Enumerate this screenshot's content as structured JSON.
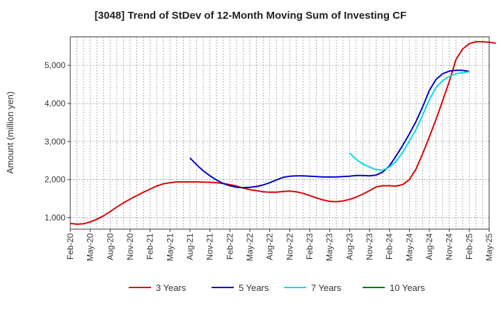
{
  "chart_data": {
    "type": "line",
    "title": "[3048]  Trend of StDev of 12-Month Moving Sum of Investing CF",
    "ylabel": "Amount (million yen)",
    "xlabel": "",
    "x_ticks": [
      "Feb-20",
      "May-20",
      "Aug-20",
      "Nov-20",
      "Feb-21",
      "May-21",
      "Aug-21",
      "Nov-21",
      "Feb-22",
      "May-22",
      "Aug-22",
      "Nov-22",
      "Feb-23",
      "May-23",
      "Aug-23",
      "Nov-23",
      "Feb-24",
      "May-24",
      "Aug-24",
      "Nov-24",
      "Feb-25",
      "May-25"
    ],
    "y_ticks": [
      1000,
      2000,
      3000,
      4000,
      5000
    ],
    "y_tick_labels": [
      "1,000",
      "2,000",
      "3,000",
      "4,000",
      "5,000"
    ],
    "ylim": [
      700,
      5750
    ],
    "xlim": [
      0,
      63
    ],
    "grid": true,
    "legend_position": "bottom",
    "series": [
      {
        "name": "3 Years",
        "color": "#dd0000",
        "x_start": 0,
        "values": [
          850,
          830,
          840,
          890,
          960,
          1050,
          1160,
          1280,
          1390,
          1490,
          1580,
          1670,
          1750,
          1830,
          1890,
          1920,
          1940,
          1940,
          1940,
          1940,
          1935,
          1930,
          1920,
          1900,
          1870,
          1830,
          1780,
          1740,
          1710,
          1680,
          1670,
          1670,
          1690,
          1700,
          1680,
          1640,
          1580,
          1520,
          1470,
          1430,
          1420,
          1440,
          1480,
          1540,
          1620,
          1710,
          1810,
          1840,
          1840,
          1830,
          1870,
          2000,
          2280,
          2680,
          3120,
          3580,
          4070,
          4580,
          5150,
          5430,
          5570,
          5620,
          5620,
          5610,
          5580
        ]
      },
      {
        "name": "5 Years",
        "color": "#0000cc",
        "x_start": 18,
        "values": [
          2570,
          2390,
          2230,
          2100,
          1990,
          1900,
          1840,
          1800,
          1790,
          1800,
          1820,
          1860,
          1920,
          1990,
          2060,
          2090,
          2100,
          2100,
          2090,
          2080,
          2070,
          2070,
          2070,
          2080,
          2090,
          2110,
          2110,
          2100,
          2120,
          2200,
          2360,
          2620,
          2900,
          3200,
          3530,
          3910,
          4340,
          4630,
          4780,
          4850,
          4870,
          4870,
          4840
        ]
      },
      {
        "name": "7 Years",
        "color": "#00dddd",
        "x_start": 42,
        "values": [
          2700,
          2530,
          2410,
          2330,
          2260,
          2250,
          2330,
          2480,
          2720,
          3010,
          3320,
          3690,
          4100,
          4420,
          4600,
          4710,
          4780,
          4810,
          4830
        ]
      },
      {
        "name": "10 Years",
        "color": "#007700",
        "x_start": 0,
        "values": []
      }
    ]
  }
}
